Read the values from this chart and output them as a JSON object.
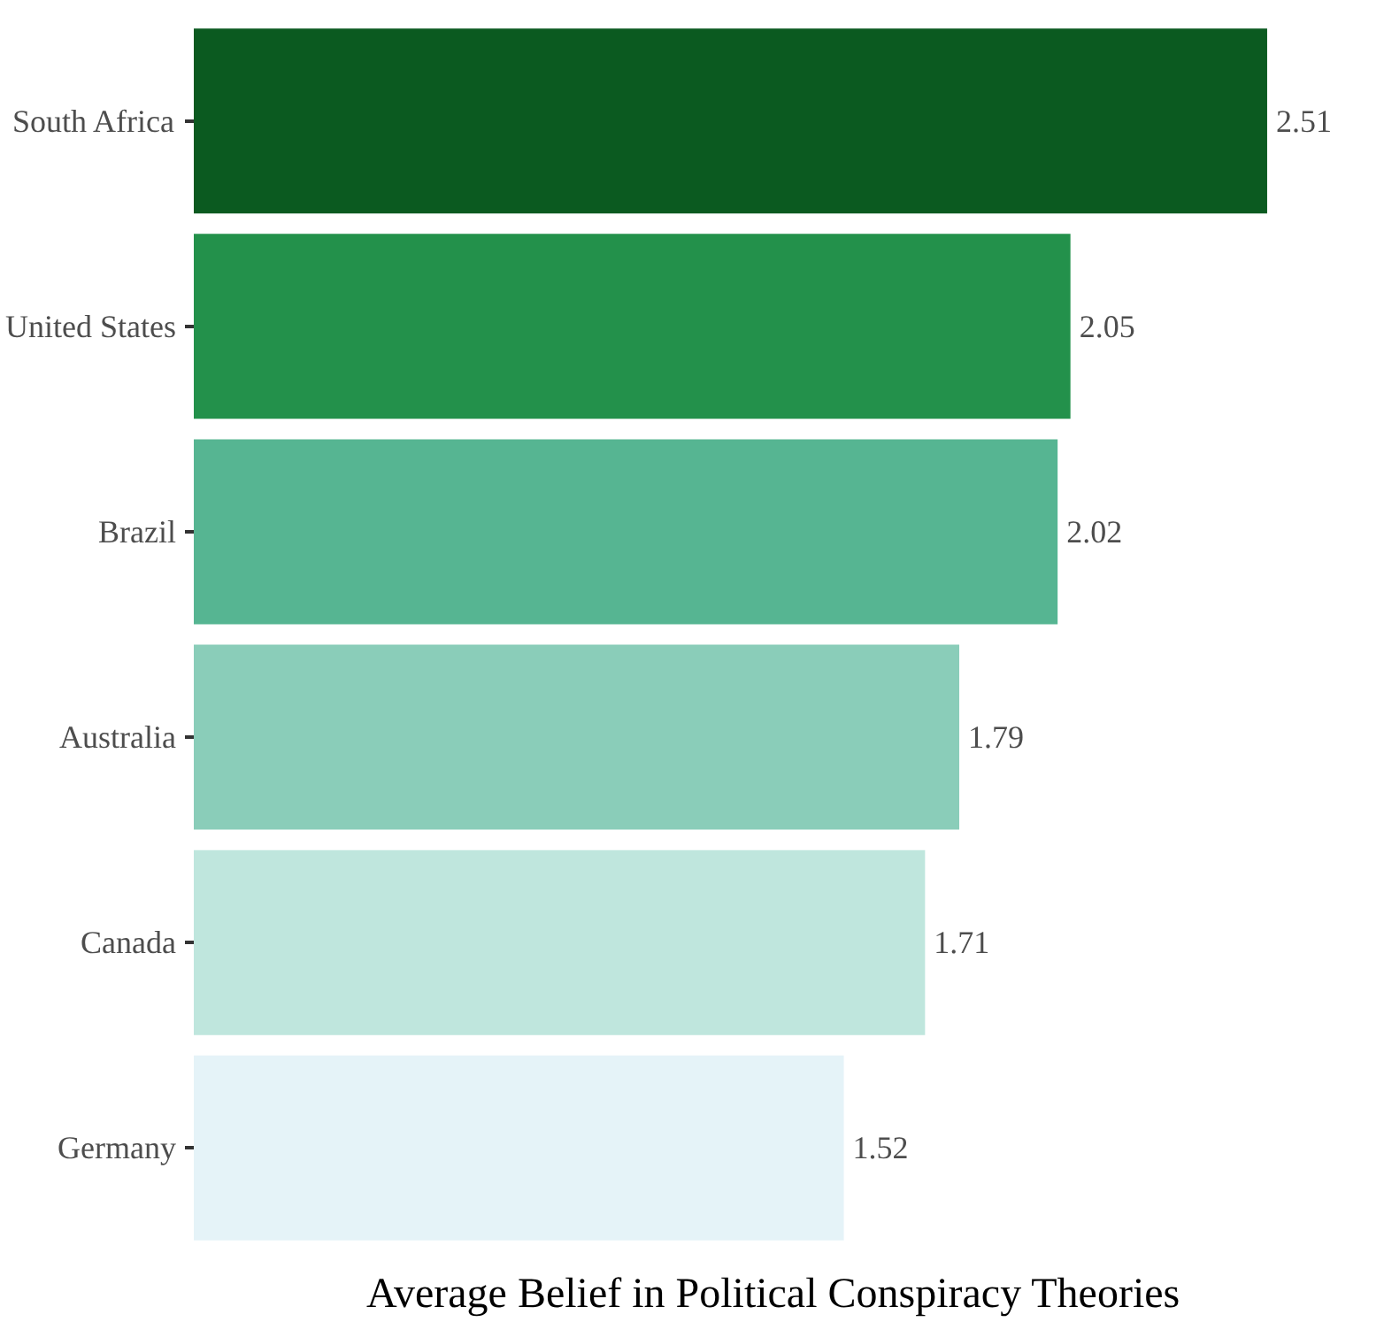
{
  "chart_data": {
    "type": "bar",
    "orientation": "horizontal",
    "xlabel": "Average Belief in Political Conspiracy Theories",
    "categories": [
      "South Africa",
      "United States",
      "Brazil",
      "Australia",
      "Canada",
      "Germany"
    ],
    "values": [
      2.51,
      2.05,
      2.02,
      1.79,
      1.71,
      1.52
    ],
    "colors": [
      "#0b5a20",
      "#23914b",
      "#56b592",
      "#8acdb9",
      "#bfe6dd",
      "#e5f3f8"
    ],
    "data_labels": true,
    "grid": false
  }
}
